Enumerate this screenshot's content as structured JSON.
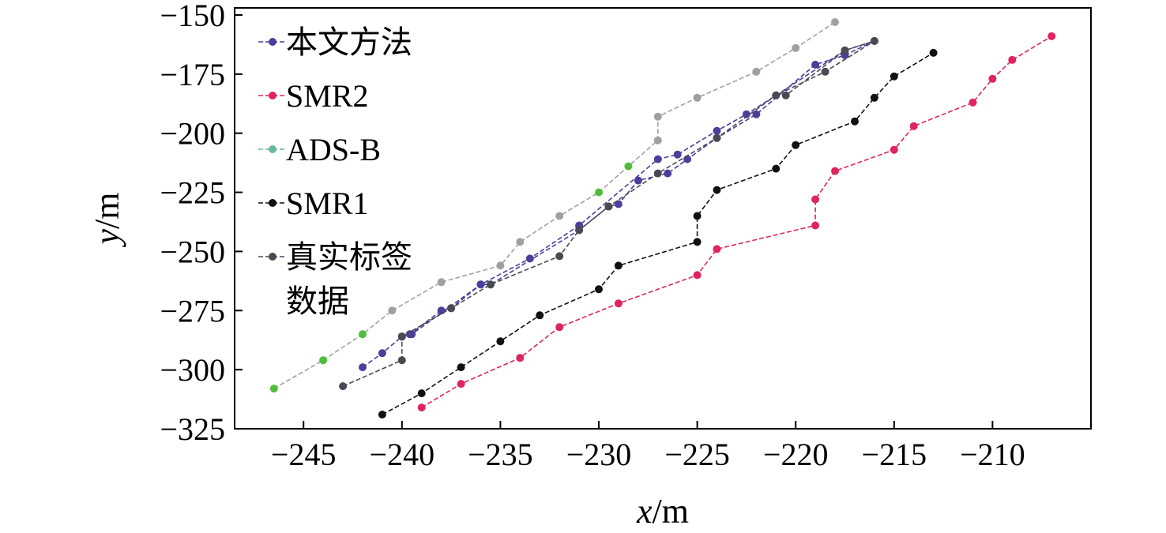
{
  "chart_data": {
    "type": "line",
    "xlabel_var": "x",
    "xlabel_unit": "/m",
    "ylabel_var": "y",
    "ylabel_unit": "/m",
    "xlim": [
      -248.5,
      -205
    ],
    "ylim": [
      -325,
      -147
    ],
    "xticks": [
      -245,
      -240,
      -235,
      -230,
      -225,
      -220,
      -215,
      -210
    ],
    "yticks": [
      -150,
      -175,
      -200,
      -225,
      -250,
      -275,
      -300,
      -325
    ],
    "legend": {
      "placement": "top-left"
    },
    "series": [
      {
        "name": "ADS-B",
        "color": "#a0a0a0",
        "point_colors": [
          "#4fbe3c",
          "#4fbe3c",
          "#4fbe3c",
          "#a0a0a0",
          "#a0a0a0",
          "#a0a0a0",
          "#a0a0a0",
          "#a0a0a0",
          "#4fbe3c",
          "#4fbe3c",
          "#a0a0a0",
          "#a0a0a0",
          "#a0a0a0",
          "#a0a0a0",
          "#a0a0a0",
          "#a0a0a0"
        ],
        "points": [
          [
            -246.5,
            -308
          ],
          [
            -244,
            -296
          ],
          [
            -242,
            -285
          ],
          [
            -240.5,
            -275
          ],
          [
            -238,
            -263
          ],
          [
            -235,
            -256
          ],
          [
            -234,
            -246
          ],
          [
            -232,
            -235
          ],
          [
            -230,
            -225
          ],
          [
            -228.5,
            -214
          ],
          [
            -227,
            -203
          ],
          [
            -227,
            -193
          ],
          [
            -225,
            -185
          ],
          [
            -222,
            -174
          ],
          [
            -220,
            -164
          ],
          [
            -218,
            -153
          ]
        ]
      },
      {
        "name": "本文方法",
        "color": "#4a3f9a",
        "point_colors": [],
        "points": [
          [
            -242,
            -299
          ],
          [
            -241,
            -293
          ],
          [
            -240,
            -286
          ],
          [
            -239.6,
            -285
          ],
          [
            -238,
            -275
          ],
          [
            -237.5,
            -274
          ],
          [
            -236,
            -264
          ],
          [
            -235.5,
            -264
          ],
          [
            -231,
            -241
          ],
          [
            -229.5,
            -231
          ],
          [
            -229,
            -230
          ],
          [
            -228,
            -220
          ],
          [
            -226.5,
            -217
          ],
          [
            -225.5,
            -211
          ],
          [
            -224,
            -202
          ],
          [
            -222,
            -192
          ],
          [
            -219,
            -171
          ],
          [
            -217.5,
            -167
          ],
          [
            -216,
            -161
          ],
          [
            -217.5,
            -165
          ],
          [
            -221,
            -184
          ],
          [
            -222.5,
            -192
          ],
          [
            -224,
            -199
          ],
          [
            -226,
            -209
          ],
          [
            -227,
            -211
          ],
          [
            -231,
            -239
          ],
          [
            -233.5,
            -253
          ],
          [
            -236,
            -264
          ],
          [
            -239.5,
            -285
          ],
          [
            -240,
            -286
          ]
        ]
      },
      {
        "name": "真实标签数据",
        "color": "#4a4a55",
        "point_colors": [],
        "points": [
          [
            -243,
            -307
          ],
          [
            -240,
            -296
          ],
          [
            -240,
            -286
          ],
          [
            -237.5,
            -274
          ],
          [
            -235.5,
            -264
          ],
          [
            -232,
            -252
          ],
          [
            -231,
            -241
          ],
          [
            -229.5,
            -231
          ],
          [
            -227,
            -217
          ],
          [
            -224,
            -202
          ],
          [
            -221,
            -184
          ],
          [
            -218.5,
            -174
          ],
          [
            -216,
            -161
          ],
          [
            -217.5,
            -165
          ],
          [
            -220.5,
            -184
          ]
        ]
      },
      {
        "name": "SMR1",
        "color": "#111111",
        "point_colors": [],
        "points": [
          [
            -241,
            -319
          ],
          [
            -239,
            -310
          ],
          [
            -237,
            -299
          ],
          [
            -235,
            -288
          ],
          [
            -233,
            -277
          ],
          [
            -230,
            -266
          ],
          [
            -229,
            -256
          ],
          [
            -225,
            -246
          ],
          [
            -225,
            -235
          ],
          [
            -224,
            -224
          ],
          [
            -221,
            -215
          ],
          [
            -220,
            -205
          ],
          [
            -217,
            -195
          ],
          [
            -216,
            -185
          ],
          [
            -215,
            -176
          ],
          [
            -213,
            -166
          ]
        ]
      },
      {
        "name": "SMR2",
        "color": "#e0245e",
        "point_colors": [],
        "points": [
          [
            -239,
            -316
          ],
          [
            -237,
            -306
          ],
          [
            -234,
            -295
          ],
          [
            -232,
            -282
          ],
          [
            -229,
            -272
          ],
          [
            -225,
            -260
          ],
          [
            -224,
            -249
          ],
          [
            -219,
            -239
          ],
          [
            -219,
            -228
          ],
          [
            -218,
            -216
          ],
          [
            -215,
            -207
          ],
          [
            -214,
            -197
          ],
          [
            -211,
            -187
          ],
          [
            -210,
            -177
          ],
          [
            -209,
            -169
          ],
          [
            -207,
            -159
          ]
        ]
      }
    ],
    "legend_entries": [
      {
        "label": "本文方法",
        "color": "#4a3f9a"
      },
      {
        "label": "SMR2",
        "color": "#e0245e"
      },
      {
        "label": "ADS-B",
        "color": "#6ab89a"
      },
      {
        "label": "SMR1",
        "color": "#111111"
      },
      {
        "label": "真实标签",
        "label_line2": "数据",
        "color": "#4a4a55"
      }
    ]
  }
}
